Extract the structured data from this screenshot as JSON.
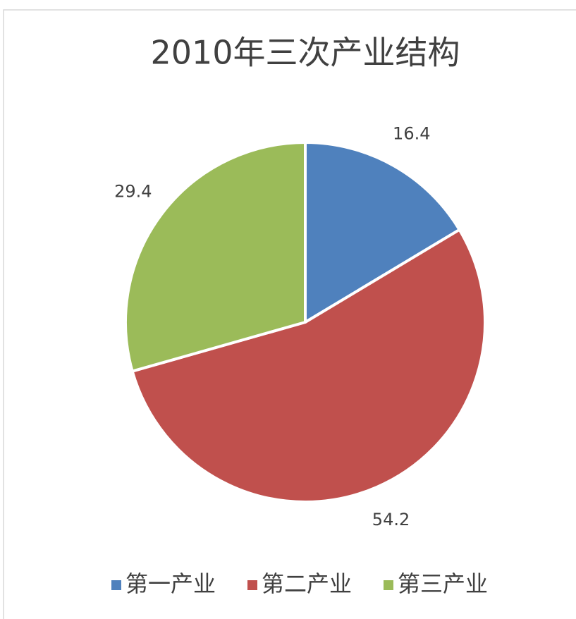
{
  "chart_data": {
    "type": "pie",
    "title": "2010年三次产业结构",
    "categories": [
      "第一产业",
      "第二产业",
      "第三产业"
    ],
    "values": [
      16.4,
      54.2,
      29.4
    ],
    "colors": [
      "#4f81bd",
      "#c0504d",
      "#9bbb59"
    ],
    "legend": "bottom"
  }
}
